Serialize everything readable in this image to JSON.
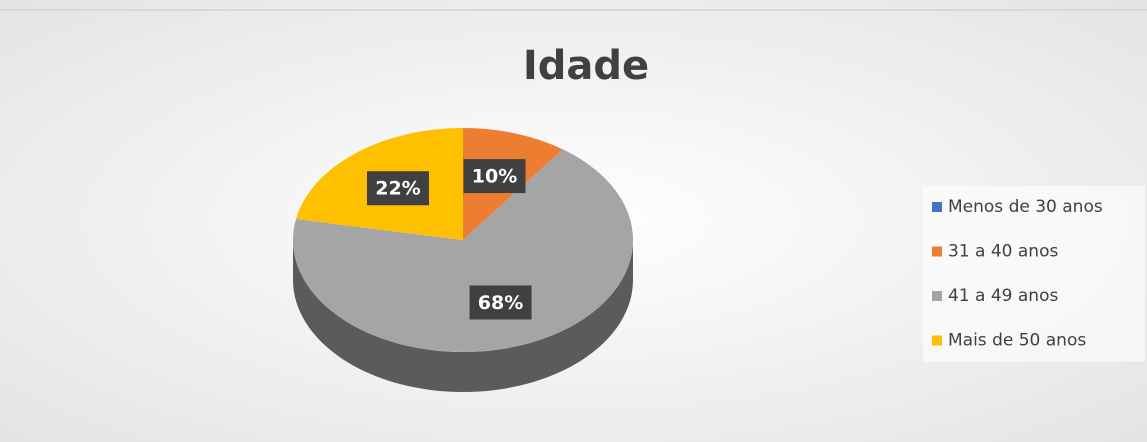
{
  "chart_data": {
    "type": "pie",
    "title": "Idade",
    "categories": [
      "Menos de 30 anos",
      "31 a 40 anos",
      "41 a 49 anos",
      "Mais de 50 anos"
    ],
    "values": [
      0,
      10,
      68,
      22
    ],
    "value_labels": [
      null,
      "10%",
      "68%",
      "22%"
    ],
    "colors": [
      "#4472c4",
      "#ed7d31",
      "#a5a5a5",
      "#ffc000"
    ],
    "legend": "right"
  }
}
